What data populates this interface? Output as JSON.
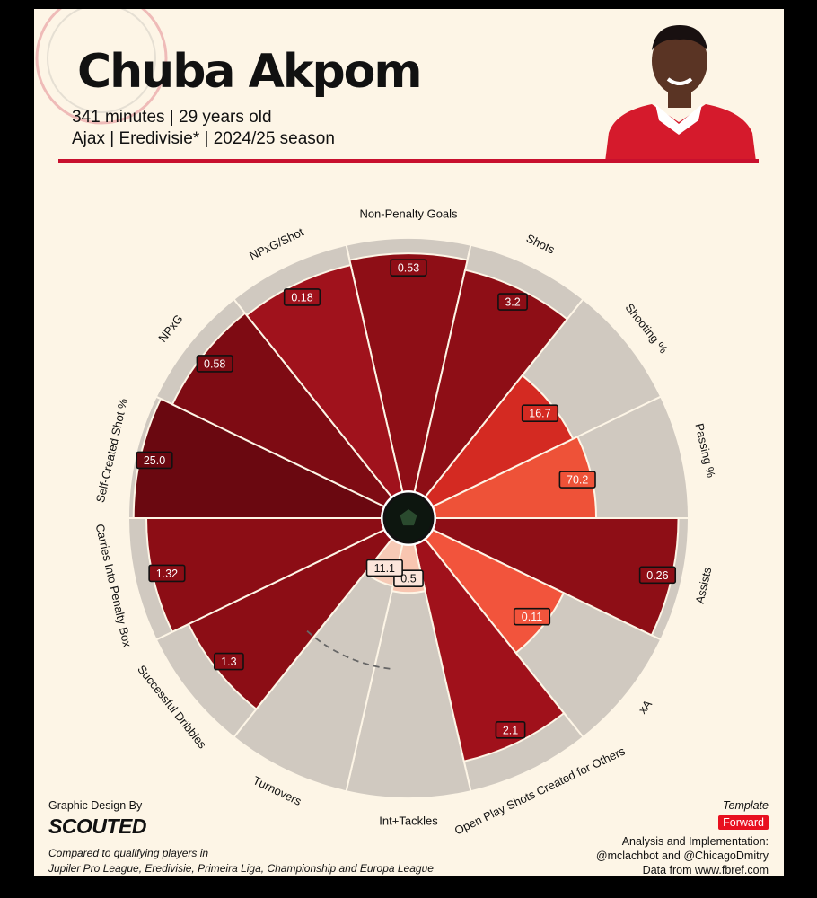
{
  "header": {
    "player_name": "Chuba Akpom",
    "line1": "341 minutes | 29 years old",
    "line2": "Ajax | Eredivisie* | 2024/25 season"
  },
  "footer": {
    "design_label": "Graphic Design By",
    "brand": "SCOUTED",
    "compared_line1": "Compared to qualifying players in",
    "compared_line2": "Jupiler Pro League, Eredivisie, Primeira Liga, Championship and Europa League",
    "template_label": "Template",
    "template_value": "Forward",
    "analysis_label": "Analysis and Implementation:",
    "analysis_authors": "@mclachbot and @ChicagoDmitry",
    "data_source": "Data from www.fbref.com"
  },
  "colors": {
    "background": "#fdf5e6",
    "wedge_background": "#d0c9c0",
    "accent": "#c8102e",
    "template_badge": "#e8101f"
  },
  "chart_data": {
    "type": "pizza",
    "percentile_range": [
      0,
      100
    ],
    "metrics": [
      {
        "label": "Non-Penalty Goals",
        "value_label": "0.53",
        "percentile": 94,
        "color": "#8e0e16"
      },
      {
        "label": "Shots",
        "value_label": "3.2",
        "percentile": 90,
        "color": "#8e0e16"
      },
      {
        "label": "Shooting %",
        "value_label": "16.7",
        "percentile": 62,
        "color": "#d42a22"
      },
      {
        "label": "Passing %",
        "value_label": "70.2",
        "percentile": 64,
        "color": "#ee5238"
      },
      {
        "label": "Assists",
        "value_label": "0.26",
        "percentile": 96,
        "color": "#8e0e16"
      },
      {
        "label": "xA",
        "value_label": "0.11",
        "percentile": 58,
        "color": "#f2543c"
      },
      {
        "label": "Open Play Shots Created for Others",
        "value_label": "2.1",
        "percentile": 88,
        "color": "#a0111b"
      },
      {
        "label": "Int+Tackles",
        "value_label": "0.5",
        "percentile": 20,
        "color": "#f8c5b0"
      },
      {
        "label": "Turnovers",
        "value_label": "11.1",
        "percentile": 18,
        "color": "#f6cab6"
      },
      {
        "label": "Successful Dribbles",
        "value_label": "1.3",
        "percentile": 86,
        "color": "#8c0d15"
      },
      {
        "label": "Carries Into Penalty Box",
        "value_label": "1.32",
        "percentile": 93,
        "color": "#8c0d15"
      },
      {
        "label": "Self-Created Shot %",
        "value_label": "25.0",
        "percentile": 98,
        "color": "#6a0810"
      },
      {
        "label": "NPxG",
        "value_label": "0.58",
        "percentile": 93,
        "color": "#7e0b13"
      },
      {
        "label": "NPxG/Shot",
        "value_label": "0.18",
        "percentile": 92,
        "color": "#a0121c"
      }
    ]
  }
}
